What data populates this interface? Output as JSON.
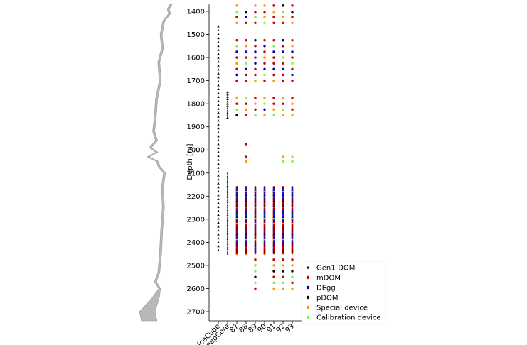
{
  "chart_data": {
    "type": "scatter",
    "title": "",
    "xlabel": "",
    "ylabel": "Depth [m]",
    "ylim": [
      1370,
      2740
    ],
    "y_inverted": true,
    "grid": false,
    "legend_placement": "bottom-right",
    "categories": [
      "IceCube",
      "DeepCore",
      "87",
      "88",
      "89",
      "90",
      "91",
      "92",
      "93"
    ],
    "yticks": [
      1400,
      1500,
      1600,
      1700,
      1800,
      1900,
      2000,
      2100,
      2200,
      2300,
      2400,
      2500,
      2600,
      2700
    ],
    "legend": [
      {
        "key": "gen1",
        "label": "Gen1-DOM",
        "color": "#000000",
        "marker": "triangle"
      },
      {
        "key": "mdom",
        "label": "mDOM",
        "color": "#cc0000",
        "marker": "circle"
      },
      {
        "key": "degg",
        "label": "DEgg",
        "color": "#0000cc",
        "marker": "circle"
      },
      {
        "key": "pdom",
        "label": "pDOM",
        "color": "#000000",
        "marker": "circle"
      },
      {
        "key": "special",
        "label": "Special device",
        "color": "#ff9900",
        "marker": "circle"
      },
      {
        "key": "calib",
        "label": "Calibration device",
        "color": "#88ee44",
        "marker": "circle"
      }
    ],
    "series": [
      {
        "key": "gen1",
        "category": "IceCube",
        "y_start": 1465,
        "y_end": 2450,
        "spacing": 17
      },
      {
        "key": "gen1",
        "category": "DeepCore",
        "y_start": 1750,
        "y_end": 1860,
        "spacing": 10
      },
      {
        "key": "gen1",
        "category": "DeepCore",
        "y_start": 2100,
        "y_end": 2450,
        "spacing": 7
      },
      {
        "key": "mix",
        "category": "87",
        "points": [
          [
            1375,
            "special"
          ],
          [
            1405,
            "calib"
          ],
          [
            1425,
            "mdom"
          ],
          [
            1450,
            "special"
          ],
          [
            1525,
            "mdom"
          ],
          [
            1550,
            "calib"
          ],
          [
            1575,
            "degg"
          ],
          [
            1600,
            "mdom"
          ],
          [
            1625,
            "special"
          ],
          [
            1650,
            "mdom"
          ],
          [
            1675,
            "degg"
          ],
          [
            1700,
            "mdom"
          ],
          [
            1775,
            "special"
          ],
          [
            1800,
            "mdom"
          ],
          [
            1825,
            "calib"
          ],
          [
            1850,
            "pdom"
          ],
          [
            2450,
            "special"
          ]
        ]
      },
      {
        "key": "mix",
        "category": "88",
        "points": [
          [
            1405,
            "pdom"
          ],
          [
            1425,
            "degg"
          ],
          [
            1450,
            "mdom"
          ],
          [
            1525,
            "mdom"
          ],
          [
            1550,
            "special"
          ],
          [
            1575,
            "degg"
          ],
          [
            1600,
            "mdom"
          ],
          [
            1625,
            "calib"
          ],
          [
            1650,
            "degg"
          ],
          [
            1675,
            "mdom"
          ],
          [
            1700,
            "mdom"
          ],
          [
            1775,
            "calib"
          ],
          [
            1800,
            "mdom"
          ],
          [
            1825,
            "special"
          ],
          [
            1850,
            "mdom"
          ],
          [
            1975,
            "mdom"
          ],
          [
            2030,
            "mdom"
          ],
          [
            2050,
            "special"
          ],
          [
            2450,
            "special"
          ]
        ]
      },
      {
        "key": "mix",
        "category": "89",
        "points": [
          [
            1375,
            "special"
          ],
          [
            1405,
            "mdom"
          ],
          [
            1425,
            "calib"
          ],
          [
            1450,
            "mdom"
          ],
          [
            1525,
            "pdom"
          ],
          [
            1550,
            "mdom"
          ],
          [
            1575,
            "degg"
          ],
          [
            1600,
            "mdom"
          ],
          [
            1625,
            "degg"
          ],
          [
            1650,
            "mdom"
          ],
          [
            1675,
            "mdom"
          ],
          [
            1700,
            "special"
          ],
          [
            1775,
            "mdom"
          ],
          [
            1800,
            "special"
          ],
          [
            1825,
            "mdom"
          ],
          [
            1850,
            "calib"
          ],
          [
            2475,
            "mdom"
          ],
          [
            2500,
            "special"
          ],
          [
            2525,
            "calib"
          ],
          [
            2550,
            "degg"
          ],
          [
            2575,
            "calib"
          ],
          [
            2600,
            "mdom"
          ]
        ]
      },
      {
        "key": "mix",
        "category": "90",
        "points": [
          [
            1375,
            "special"
          ],
          [
            1405,
            "mdom"
          ],
          [
            1425,
            "special"
          ],
          [
            1450,
            "calib"
          ],
          [
            1525,
            "mdom"
          ],
          [
            1550,
            "degg"
          ],
          [
            1575,
            "mdom"
          ],
          [
            1600,
            "special"
          ],
          [
            1625,
            "mdom"
          ],
          [
            1650,
            "degg"
          ],
          [
            1675,
            "calib"
          ],
          [
            1700,
            "mdom"
          ],
          [
            1775,
            "special"
          ],
          [
            1800,
            "calib"
          ],
          [
            1825,
            "degg"
          ],
          [
            1850,
            "special"
          ],
          [
            2450,
            "special"
          ]
        ]
      },
      {
        "key": "mix",
        "category": "91",
        "points": [
          [
            1375,
            "mdom"
          ],
          [
            1405,
            "special"
          ],
          [
            1425,
            "mdom"
          ],
          [
            1450,
            "mdom"
          ],
          [
            1525,
            "mdom"
          ],
          [
            1550,
            "calib"
          ],
          [
            1575,
            "degg"
          ],
          [
            1600,
            "mdom"
          ],
          [
            1625,
            "mdom"
          ],
          [
            1650,
            "degg"
          ],
          [
            1675,
            "mdom"
          ],
          [
            1700,
            "special"
          ],
          [
            1775,
            "mdom"
          ],
          [
            1800,
            "mdom"
          ],
          [
            1825,
            "special"
          ],
          [
            1850,
            "calib"
          ],
          [
            2475,
            "mdom"
          ],
          [
            2500,
            "special"
          ],
          [
            2525,
            "pdom"
          ],
          [
            2550,
            "mdom"
          ],
          [
            2575,
            "calib"
          ],
          [
            2600,
            "special"
          ]
        ]
      },
      {
        "key": "mix",
        "category": "92",
        "points": [
          [
            1375,
            "pdom"
          ],
          [
            1405,
            "calib"
          ],
          [
            1425,
            "special"
          ],
          [
            1450,
            "mdom"
          ],
          [
            1525,
            "pdom"
          ],
          [
            1550,
            "mdom"
          ],
          [
            1575,
            "degg"
          ],
          [
            1600,
            "calib"
          ],
          [
            1625,
            "mdom"
          ],
          [
            1650,
            "degg"
          ],
          [
            1675,
            "mdom"
          ],
          [
            1700,
            "mdom"
          ],
          [
            1775,
            "special"
          ],
          [
            1800,
            "mdom"
          ],
          [
            1825,
            "calib"
          ],
          [
            1850,
            "special"
          ],
          [
            2030,
            "special"
          ],
          [
            2050,
            "calib"
          ],
          [
            2475,
            "mdom"
          ],
          [
            2500,
            "special"
          ],
          [
            2525,
            "pdom"
          ],
          [
            2550,
            "mdom"
          ],
          [
            2575,
            "calib"
          ],
          [
            2600,
            "special"
          ]
        ]
      },
      {
        "key": "mix",
        "category": "93",
        "points": [
          [
            1375,
            "mdom"
          ],
          [
            1405,
            "pdom"
          ],
          [
            1425,
            "mdom"
          ],
          [
            1450,
            "special"
          ],
          [
            1525,
            "mdom"
          ],
          [
            1550,
            "special"
          ],
          [
            1575,
            "degg"
          ],
          [
            1600,
            "mdom"
          ],
          [
            1625,
            "calib"
          ],
          [
            1650,
            "mdom"
          ],
          [
            1675,
            "degg"
          ],
          [
            1700,
            "mdom"
          ],
          [
            1775,
            "mdom"
          ],
          [
            1800,
            "special"
          ],
          [
            1825,
            "mdom"
          ],
          [
            1850,
            "special"
          ],
          [
            2030,
            "calib"
          ],
          [
            2050,
            "calib"
          ],
          [
            2475,
            "mdom"
          ],
          [
            2500,
            "special"
          ],
          [
            2525,
            "pdom"
          ],
          [
            2550,
            "calib"
          ],
          [
            2575,
            "mdom"
          ],
          [
            2600,
            "special"
          ]
        ]
      },
      {
        "key": "dense",
        "categories": [
          "87",
          "88",
          "89",
          "90",
          "91",
          "92",
          "93"
        ],
        "y_start": 2160,
        "y_end": 2450,
        "spacing": 3
      }
    ],
    "ice_profile": [
      [
        1370,
        0.85
      ],
      [
        1390,
        0.75
      ],
      [
        1410,
        0.8
      ],
      [
        1440,
        0.6
      ],
      [
        1500,
        0.5
      ],
      [
        1560,
        0.55
      ],
      [
        1620,
        0.42
      ],
      [
        1700,
        0.47
      ],
      [
        1780,
        0.34
      ],
      [
        1850,
        0.3
      ],
      [
        1920,
        0.24
      ],
      [
        1960,
        0.34
      ],
      [
        1990,
        0.12
      ],
      [
        2010,
        0.35
      ],
      [
        2030,
        0.05
      ],
      [
        2050,
        0.38
      ],
      [
        2070,
        0.42
      ],
      [
        2100,
        0.62
      ],
      [
        2160,
        0.55
      ],
      [
        2250,
        0.58
      ],
      [
        2350,
        0.52
      ],
      [
        2450,
        0.48
      ],
      [
        2530,
        0.42
      ],
      [
        2570,
        0.3
      ],
      [
        2600,
        0.45
      ],
      [
        2640,
        0.4
      ],
      [
        2700,
        0.25
      ],
      [
        2740,
        0.32
      ]
    ]
  }
}
